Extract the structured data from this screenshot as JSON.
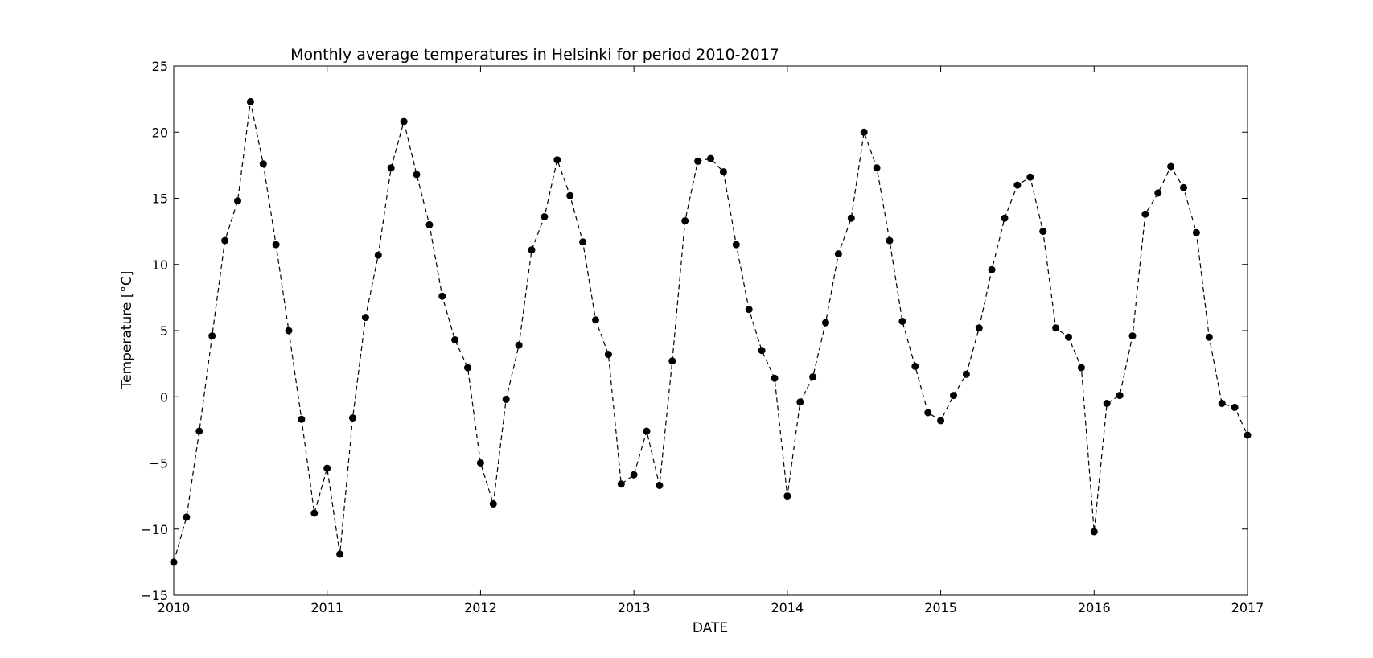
{
  "chart_data": {
    "type": "line",
    "title": "Monthly average temperatures in Helsinki for period 2010-2017",
    "xlabel": "DATE",
    "ylabel": "Temperature [°C]",
    "xlim": [
      "2010-01",
      "2017-01"
    ],
    "ylim": [
      -15,
      25
    ],
    "x_ticks": [
      "2010",
      "2011",
      "2012",
      "2013",
      "2014",
      "2015",
      "2016",
      "2017"
    ],
    "y_ticks": [
      "−15",
      "−10",
      "−5",
      "0",
      "5",
      "10",
      "15",
      "20",
      "25"
    ],
    "grid": false,
    "line_style": "dashed",
    "marker": "circle",
    "color": "#000000",
    "series": [
      {
        "x": [
          "2010-01",
          "2010-02",
          "2010-03",
          "2010-04",
          "2010-05",
          "2010-06",
          "2010-07",
          "2010-08",
          "2010-09",
          "2010-10",
          "2010-11",
          "2010-12",
          "2011-01",
          "2011-02",
          "2011-03",
          "2011-04",
          "2011-05",
          "2011-06",
          "2011-07",
          "2011-08",
          "2011-09",
          "2011-10",
          "2011-11",
          "2011-12",
          "2012-01",
          "2012-02",
          "2012-03",
          "2012-04",
          "2012-05",
          "2012-06",
          "2012-07",
          "2012-08",
          "2012-09",
          "2012-10",
          "2012-11",
          "2012-12",
          "2013-01",
          "2013-02",
          "2013-03",
          "2013-04",
          "2013-05",
          "2013-06",
          "2013-07",
          "2013-08",
          "2013-09",
          "2013-10",
          "2013-11",
          "2013-12",
          "2014-01",
          "2014-02",
          "2014-03",
          "2014-04",
          "2014-05",
          "2014-06",
          "2014-07",
          "2014-08",
          "2014-09",
          "2014-10",
          "2014-11",
          "2014-12",
          "2015-01",
          "2015-02",
          "2015-03",
          "2015-04",
          "2015-05",
          "2015-06",
          "2015-07",
          "2015-08",
          "2015-09",
          "2015-10",
          "2015-11",
          "2015-12",
          "2016-01",
          "2016-02",
          "2016-03",
          "2016-04",
          "2016-05",
          "2016-06",
          "2016-07",
          "2016-08",
          "2016-09",
          "2016-10",
          "2016-11",
          "2016-12",
          "2017-01"
        ],
        "y": [
          -12.5,
          -9.1,
          -2.6,
          4.6,
          11.8,
          14.8,
          22.3,
          17.6,
          11.5,
          5.0,
          -1.7,
          -8.8,
          -5.4,
          -11.9,
          -1.6,
          6.0,
          10.7,
          17.3,
          20.8,
          16.8,
          13.0,
          7.6,
          4.3,
          2.2,
          -5.0,
          -8.1,
          -0.2,
          3.9,
          11.1,
          13.6,
          17.9,
          15.2,
          11.7,
          5.8,
          3.2,
          -6.6,
          -5.9,
          -2.6,
          -6.7,
          2.7,
          13.3,
          17.8,
          18.0,
          17.0,
          11.5,
          6.6,
          3.5,
          1.4,
          -7.5,
          -0.4,
          1.5,
          5.6,
          10.8,
          13.5,
          20.0,
          17.3,
          11.8,
          5.7,
          2.3,
          -1.2,
          -1.8,
          0.1,
          1.7,
          5.2,
          9.6,
          13.5,
          16.0,
          16.6,
          12.5,
          5.2,
          4.5,
          2.2,
          -10.2,
          -0.5,
          0.1,
          4.6,
          13.8,
          15.4,
          17.4,
          15.8,
          12.4,
          4.5,
          -0.5,
          -0.8,
          -2.9
        ]
      }
    ]
  }
}
